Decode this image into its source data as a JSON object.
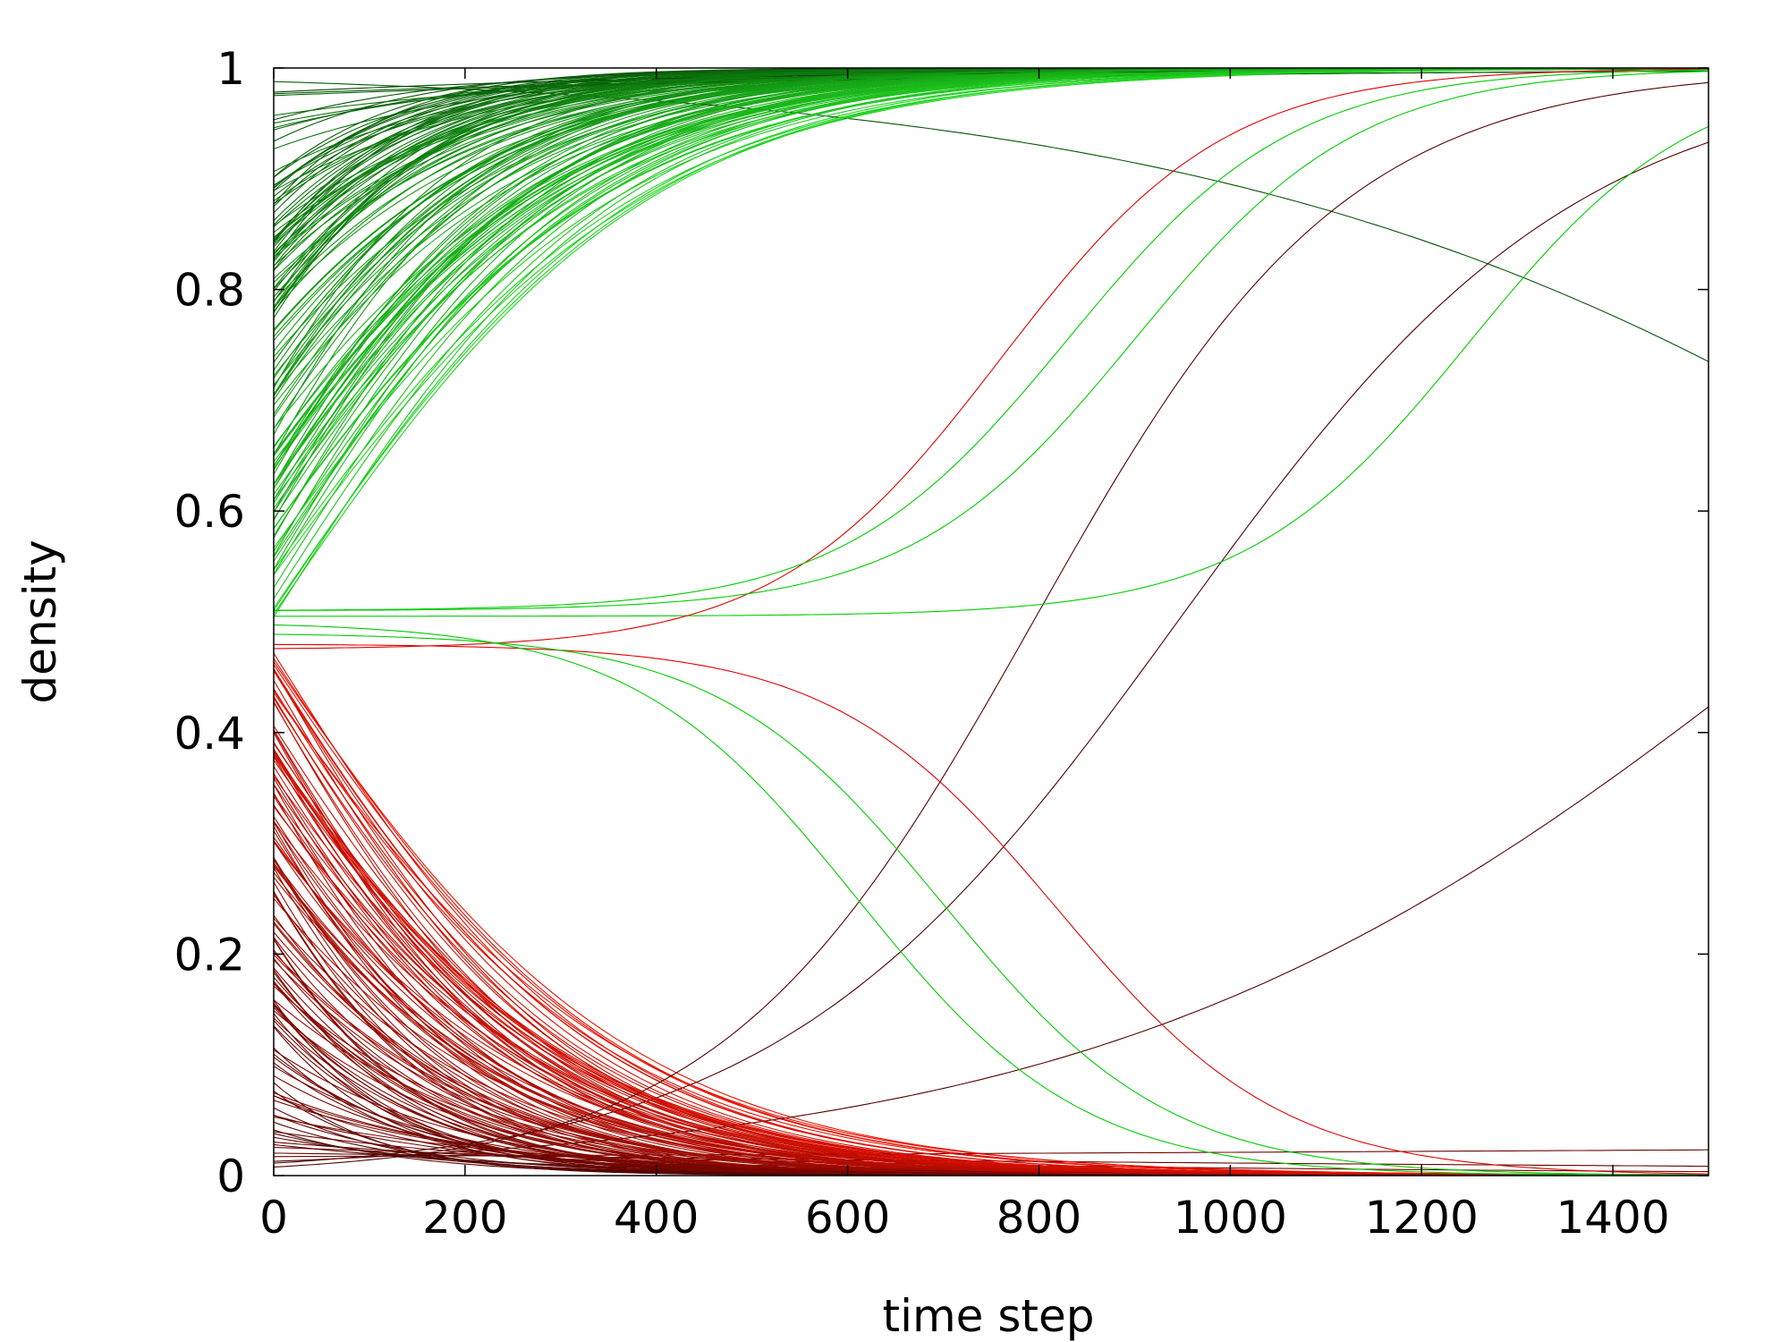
{
  "chart_data": {
    "type": "line",
    "title": "",
    "xlabel": "time step",
    "ylabel": "density",
    "xlim": [
      0,
      1500
    ],
    "ylim": [
      0,
      1
    ],
    "xticks": [
      0,
      200,
      400,
      600,
      800,
      1000,
      1200,
      1400
    ],
    "yticks": [
      0,
      0.2,
      0.4,
      0.6,
      0.8,
      1
    ],
    "ytick_labels": [
      "0",
      "0.2",
      "0.4",
      "0.6",
      "0.8",
      "1"
    ],
    "xtick_labels": [
      "0",
      "200",
      "400",
      "600",
      "800",
      "1000",
      "1200",
      "1400"
    ],
    "grid": false,
    "legend": "none",
    "colors": {
      "converge_to_one_start": "#003300",
      "converge_to_one_end": "#22dd22",
      "converge_to_zero_start": "#330000",
      "converge_to_zero_end": "#ee1100"
    },
    "series": [
      {
        "group": "up",
        "color": "#00cc00",
        "x": [
          0,
          1500
        ],
        "initial_y": 0.505,
        "t_half": 1250,
        "note_y_end": 0.87
      },
      {
        "group": "up",
        "color": "#e00000",
        "x": [
          0,
          1500
        ],
        "initial_y": 0.475,
        "t_half": 760,
        "end_y": 1
      },
      {
        "group": "up",
        "color": "#00cc00",
        "x": [
          0,
          1500
        ],
        "initial_y": 0.51,
        "t_half": 830,
        "end_y": 1
      },
      {
        "group": "up",
        "color": "#00cc00",
        "x": [
          0,
          1500
        ],
        "initial_y": 0.51,
        "t_half": 900,
        "end_y": 1
      },
      {
        "group": "down",
        "color": "#e00000",
        "x": [
          0,
          1500
        ],
        "initial_y": 0.48,
        "t_half": 820,
        "end_y": 0
      },
      {
        "group": "down",
        "color": "#00cc00",
        "x": [
          0,
          1500
        ],
        "initial_y": 0.49,
        "t_half": 700,
        "end_y": 0
      },
      {
        "group": "down",
        "color": "#00cc00",
        "x": [
          0,
          1500
        ],
        "initial_y": 0.5,
        "t_half": 610,
        "end_y": 0
      }
    ],
    "ensemble": {
      "description_count_up": 140,
      "description_count_down": 130,
      "initial_range_up": [
        0.5,
        1.0
      ],
      "initial_range_down": [
        0.0,
        0.48
      ]
    }
  }
}
